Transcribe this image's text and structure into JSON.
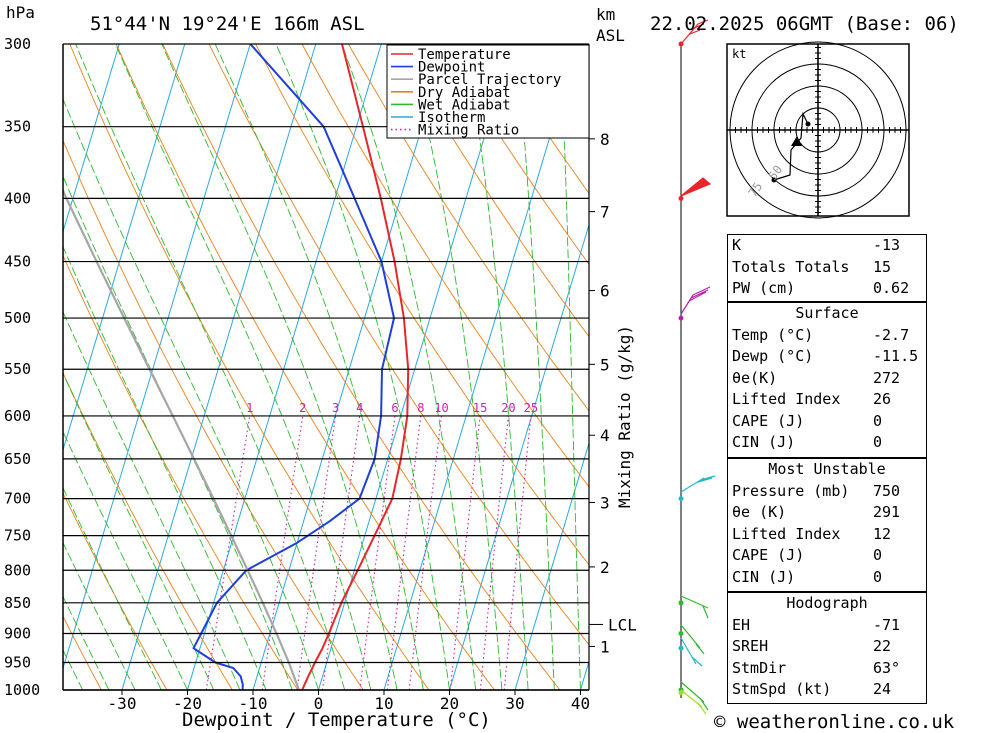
{
  "header": {
    "hpa_label": "hPa",
    "location": "51°44'N 19°24'E 166m ASL",
    "km_label": "km",
    "asl_label": "ASL",
    "datetime": "22.02.2025 06GMT (Base: 06)"
  },
  "footer": {
    "copyright": "© weatheronline.co.uk"
  },
  "hodograph": {
    "unit": "kt",
    "ring_labels": [
      "50",
      "75"
    ]
  },
  "indices": {
    "rows": [
      {
        "k": "K",
        "v": "-13"
      },
      {
        "k": "Totals Totals",
        "v": "15"
      },
      {
        "k": "PW (cm)",
        "v": "0.62"
      }
    ]
  },
  "surface": {
    "title": "Surface",
    "rows": [
      {
        "k": "Temp (°C)",
        "v": "-2.7"
      },
      {
        "k": "Dewp (°C)",
        "v": "-11.5"
      },
      {
        "k": "θe(K)",
        "v": "272"
      },
      {
        "k": "Lifted Index",
        "v": "26"
      },
      {
        "k": "CAPE (J)",
        "v": "0"
      },
      {
        "k": "CIN (J)",
        "v": "0"
      }
    ]
  },
  "most_unstable": {
    "title": "Most Unstable",
    "rows": [
      {
        "k": "Pressure (mb)",
        "v": "750"
      },
      {
        "k": "θe (K)",
        "v": "291"
      },
      {
        "k": "Lifted Index",
        "v": "12"
      },
      {
        "k": "CAPE (J)",
        "v": "0"
      },
      {
        "k": "CIN (J)",
        "v": "0"
      }
    ]
  },
  "hodo_table": {
    "title": "Hodograph",
    "rows": [
      {
        "k": "EH",
        "v": "-71"
      },
      {
        "k": "SREH",
        "v": "22"
      },
      {
        "k": "StmDir",
        "v": "63°"
      },
      {
        "k": "StmSpd (kt)",
        "v": "24"
      }
    ]
  },
  "chart_data": {
    "type": "line",
    "title": "",
    "xlabel": "Dewpoint / Temperature (°C)",
    "ylabel": "hPa",
    "right_axis_label": "Mixing Ratio (g/kg)",
    "xlim": [
      -40,
      40
    ],
    "x_ticks": [
      -30,
      -20,
      -10,
      0,
      10,
      20,
      30,
      40
    ],
    "pressure_levels": [
      300,
      350,
      400,
      450,
      500,
      550,
      600,
      650,
      700,
      750,
      800,
      850,
      900,
      950,
      1000
    ],
    "km_ticks": [
      {
        "km": "1",
        "p": 922
      },
      {
        "km": "2",
        "p": 795
      },
      {
        "km": "3",
        "p": 705
      },
      {
        "km": "4",
        "p": 622
      },
      {
        "km": "5",
        "p": 545
      },
      {
        "km": "6",
        "p": 475
      },
      {
        "km": "7",
        "p": 410
      },
      {
        "km": "8",
        "p": 358
      }
    ],
    "lcl": {
      "label": "LCL",
      "p": 885
    },
    "mixing_ratio_labels": [
      "1",
      "2",
      "3",
      "4",
      "6",
      "8",
      "10",
      "15",
      "20",
      "25"
    ],
    "legend": {
      "placement": "top-center",
      "items": [
        {
          "name": "Temperature",
          "color": "#e8262a",
          "style": "solid"
        },
        {
          "name": "Dewpoint",
          "color": "#1e3fd8",
          "style": "solid"
        },
        {
          "name": "Parcel Trajectory",
          "color": "#a6a6a6",
          "style": "solid"
        },
        {
          "name": "Dry Adiabat",
          "color": "#e8821e",
          "style": "solid"
        },
        {
          "name": "Wet Adiabat",
          "color": "#2fb82f",
          "style": "solid"
        },
        {
          "name": "Isotherm",
          "color": "#29a9e0",
          "style": "solid"
        },
        {
          "name": "Mixing Ratio",
          "color": "#d11fa6",
          "style": "dotted"
        }
      ]
    },
    "series": [
      {
        "name": "Temperature",
        "color": "#e8262a",
        "points": [
          [
            1005,
            -2.7
          ],
          [
            1000,
            -2.5
          ],
          [
            975,
            -2.2
          ],
          [
            950,
            -1.8
          ],
          [
            925,
            -1.3
          ],
          [
            900,
            -1.0
          ],
          [
            850,
            -0.5
          ],
          [
            800,
            0.5
          ],
          [
            750,
            1.5
          ],
          [
            700,
            2.5
          ],
          [
            650,
            2.0
          ],
          [
            600,
            1.0
          ],
          [
            550,
            -1.0
          ],
          [
            500,
            -4.0
          ],
          [
            450,
            -8.0
          ],
          [
            400,
            -13.0
          ],
          [
            350,
            -19.0
          ],
          [
            300,
            -26.0
          ]
        ]
      },
      {
        "name": "Dewpoint",
        "color": "#1e3fd8",
        "points": [
          [
            1005,
            -11.5
          ],
          [
            990,
            -11.8
          ],
          [
            975,
            -12.5
          ],
          [
            960,
            -14.0
          ],
          [
            950,
            -17.0
          ],
          [
            925,
            -21.0
          ],
          [
            900,
            -20.5
          ],
          [
            850,
            -19.5
          ],
          [
            800,
            -16.5
          ],
          [
            760,
            -10.0
          ],
          [
            730,
            -6.0
          ],
          [
            700,
            -2.5
          ],
          [
            650,
            -2.0
          ],
          [
            600,
            -3.0
          ],
          [
            550,
            -5.0
          ],
          [
            500,
            -5.5
          ],
          [
            450,
            -10.0
          ],
          [
            400,
            -17.0
          ],
          [
            350,
            -25.0
          ],
          [
            300,
            -40.0
          ]
        ]
      },
      {
        "name": "Parcel Trajectory",
        "color": "#a6a6a6",
        "points": [
          [
            1005,
            -2.7
          ],
          [
            950,
            -5.8
          ],
          [
            900,
            -9.0
          ],
          [
            850,
            -12.5
          ],
          [
            800,
            -16.3
          ],
          [
            750,
            -20.4
          ],
          [
            700,
            -24.8
          ],
          [
            650,
            -29.6
          ],
          [
            600,
            -34.8
          ],
          [
            550,
            -40.5
          ],
          [
            500,
            -46.7
          ],
          [
            450,
            -53.5
          ],
          [
            400,
            -61.0
          ],
          [
            350,
            -69.0
          ]
        ]
      }
    ]
  }
}
